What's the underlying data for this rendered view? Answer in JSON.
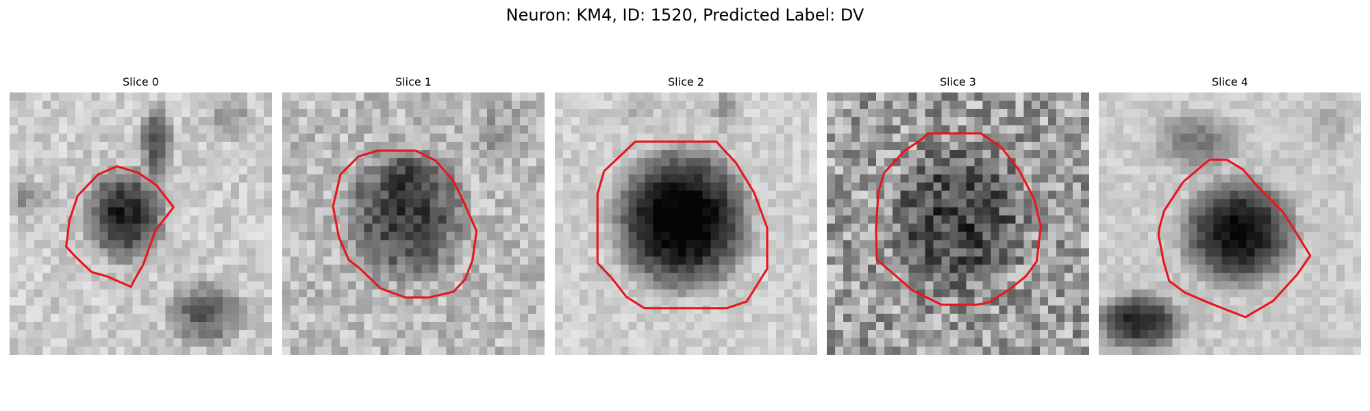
{
  "figure": {
    "title": "Neuron: KM4, ID: 1520, Predicted Label: DV"
  },
  "colors": {
    "outline": "#e8161c",
    "background": "#ffffff"
  },
  "panels": [
    {
      "title": "Slice 0"
    },
    {
      "title": "Slice 1"
    },
    {
      "title": "Slice 2"
    },
    {
      "title": "Slice 3"
    },
    {
      "title": "Slice 4"
    }
  ]
}
